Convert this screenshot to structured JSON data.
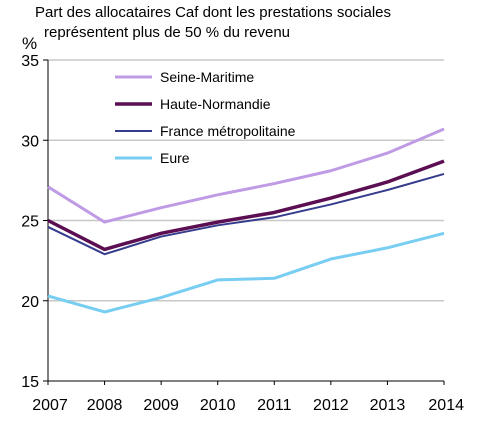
{
  "chart_data": {
    "type": "line",
    "title": "Part des allocataires Caf dont les prestations sociales représentent plus de 50 % du revenu",
    "title_lines": [
      "Part des allocataires Caf dont les prestations sociales",
      "représentent plus de 50 % du revenu"
    ],
    "ylabel": "%",
    "xlabel": "",
    "x": [
      "2007",
      "2008",
      "2009",
      "2010",
      "2011",
      "2012",
      "2013",
      "2014"
    ],
    "ylim": [
      15,
      35
    ],
    "yticks": [
      "15",
      "20",
      "25",
      "30",
      "35"
    ],
    "grid": true,
    "legend_position": "top-center",
    "series": [
      {
        "name": "Seine-Maritime",
        "color": "#bf9be6",
        "values": [
          27.1,
          24.9,
          25.8,
          26.6,
          27.3,
          28.1,
          29.2,
          30.7
        ]
      },
      {
        "name": "Haute-Normandie",
        "color": "#5b0f52",
        "values": [
          25.0,
          23.2,
          24.2,
          24.9,
          25.5,
          26.4,
          27.4,
          28.7
        ]
      },
      {
        "name": "France métropolitaine",
        "color": "#353c8d",
        "values": [
          24.6,
          22.9,
          24.0,
          24.7,
          25.2,
          26.0,
          26.9,
          27.9
        ]
      },
      {
        "name": "Eure",
        "color": "#77cdf2",
        "values": [
          20.3,
          19.3,
          20.2,
          21.3,
          21.4,
          22.6,
          23.3,
          24.2
        ]
      }
    ]
  }
}
